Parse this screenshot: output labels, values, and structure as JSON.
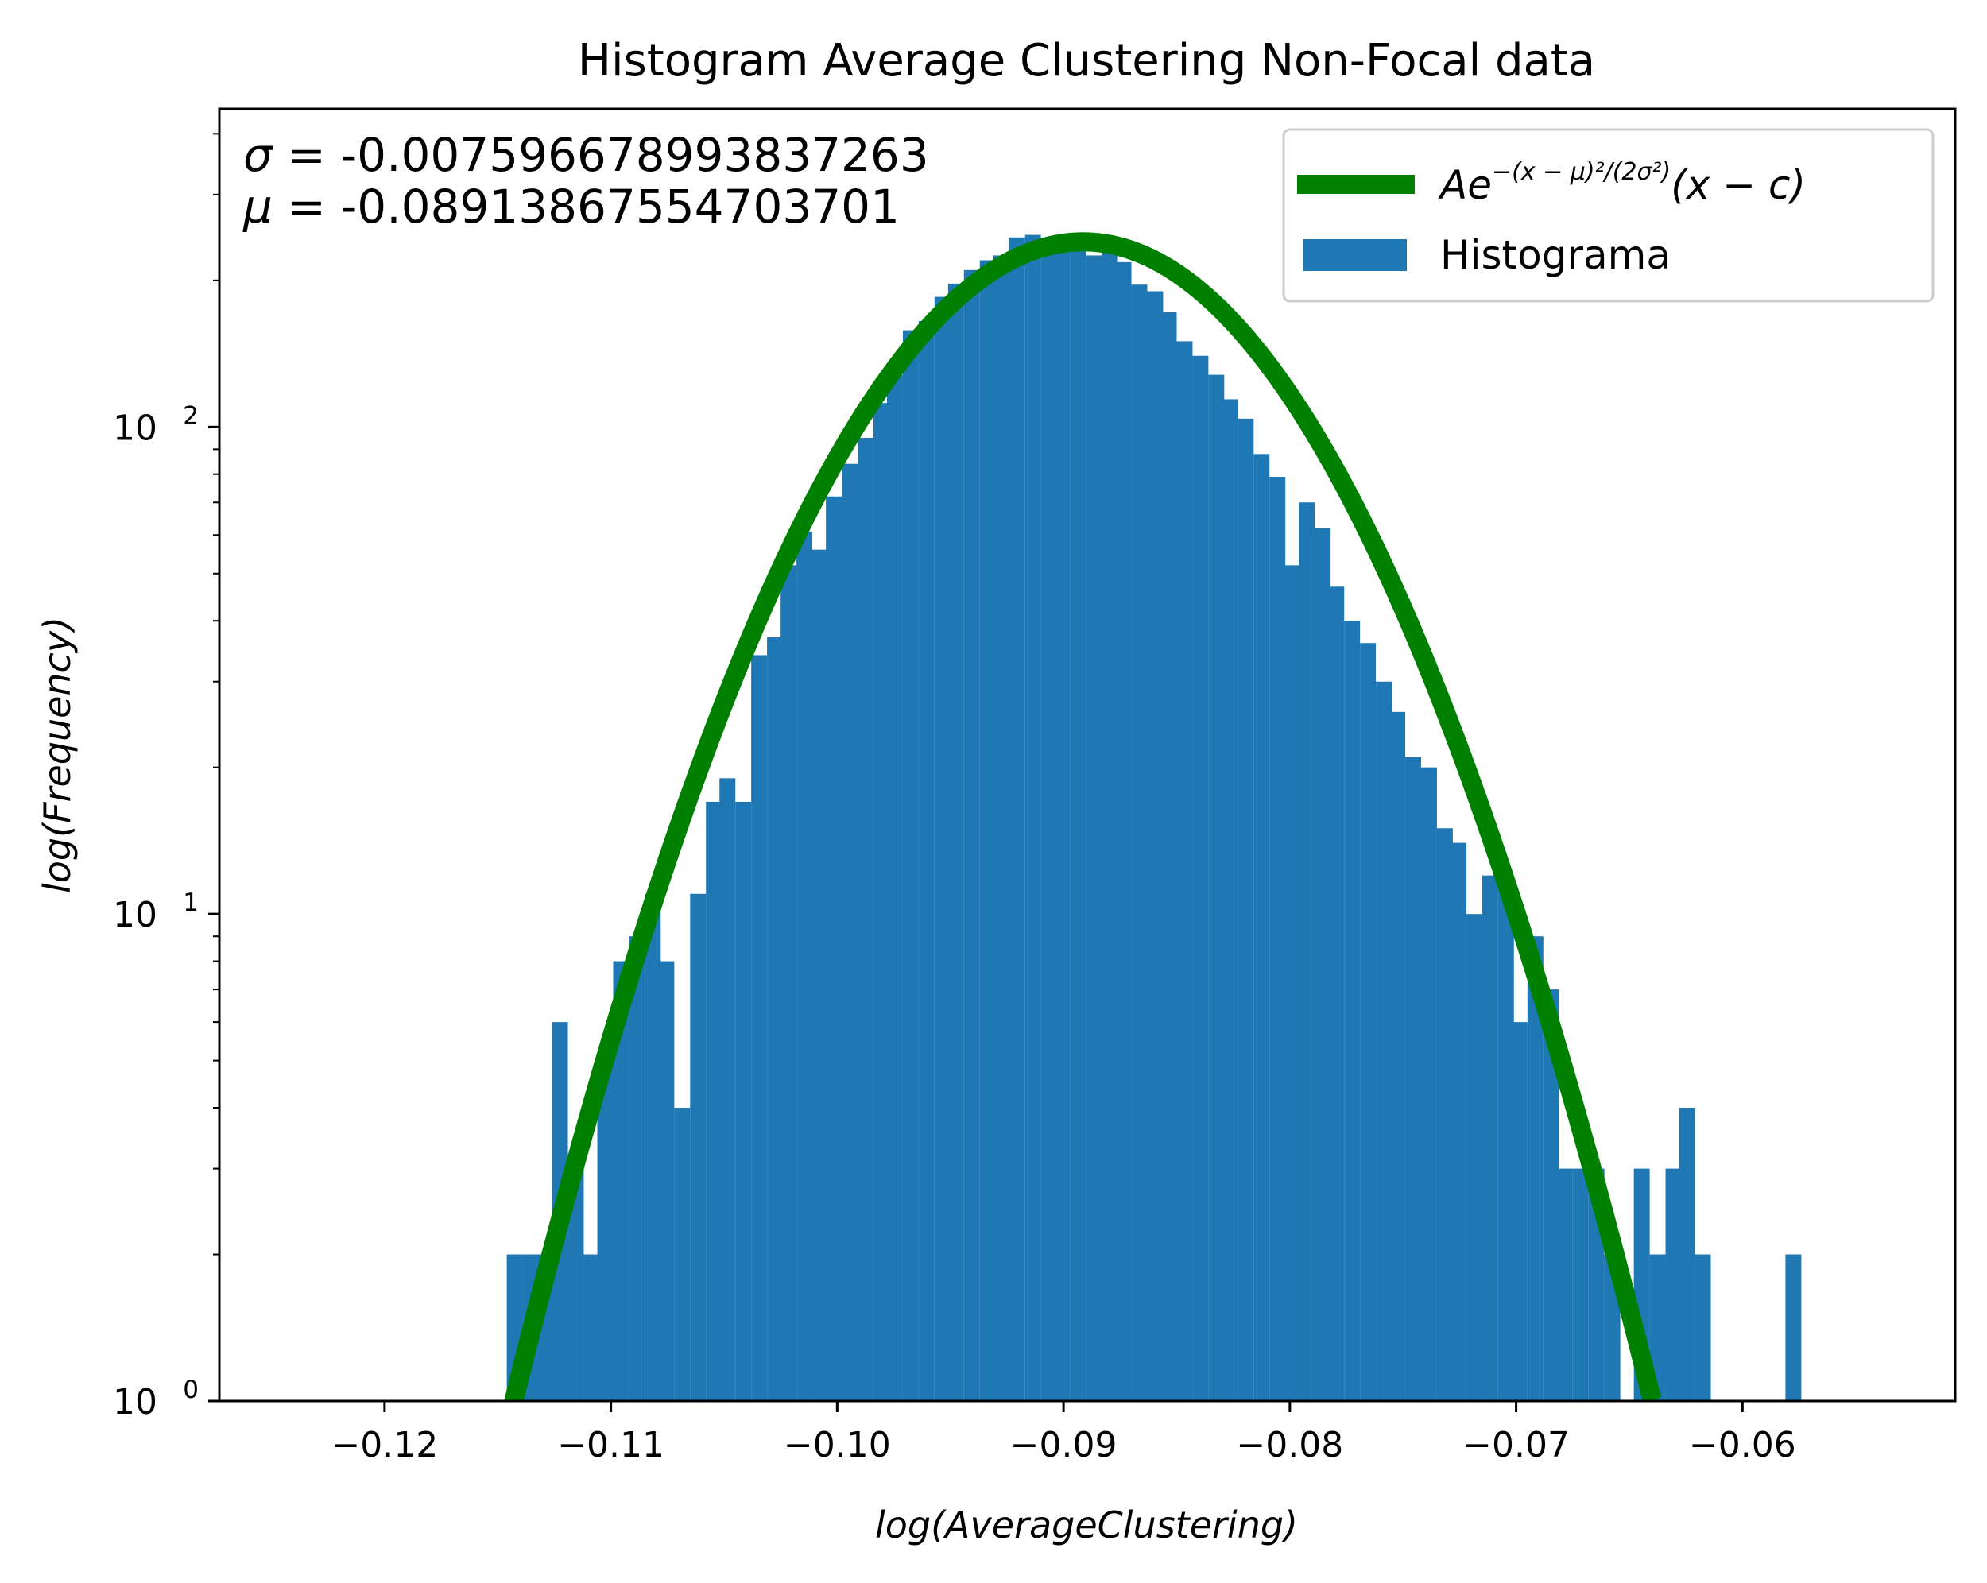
{
  "chart_data": {
    "type": "bar",
    "title": "Histogram Average Clustering Non-Focal data",
    "xlabel": "log(AverageClustering)",
    "ylabel": "log(Frequency)",
    "xlim": [
      -0.1273,
      -0.0506
    ],
    "ylim": [
      1,
      450
    ],
    "yscale": "log",
    "grid": false,
    "legend_position": "top-right",
    "xticks": [
      -0.12,
      -0.11,
      -0.1,
      -0.09,
      -0.08,
      -0.07,
      -0.06
    ],
    "xtick_labels": [
      "−0.12",
      "−0.11",
      "−0.10",
      "−0.09",
      "−0.08",
      "−0.07",
      "−0.06"
    ],
    "yticks": [
      1,
      10,
      100
    ],
    "ytick_labels": [
      {
        "base": "10",
        "exp": "0"
      },
      {
        "base": "10",
        "exp": "1"
      },
      {
        "base": "10",
        "exp": "2"
      }
    ],
    "annotations": [
      {
        "symbol": "σ",
        "text": " = -0.007596678993837263"
      },
      {
        "symbol": "μ",
        "text": " = -0.08913867554703701"
      }
    ],
    "legend": [
      {
        "type": "line",
        "label_main": "Ae",
        "label_exp": "−(x − μ)²/(2σ²)",
        "label_tail": "(x − c)",
        "color": "#008000"
      },
      {
        "type": "patch",
        "label": "Histograma",
        "color": "#1f77b4"
      }
    ],
    "series": [
      {
        "name": "Histograma",
        "kind": "histogram",
        "color": "#1f77b4",
        "bin_width": 0.0006726,
        "bin_starts": [
          -0.1146,
          -0.1139,
          -0.1132,
          -0.1126,
          -0.1119,
          -0.1112,
          -0.1106,
          -0.1099,
          -0.1092,
          -0.1085,
          -0.1079,
          -0.1072,
          -0.1065,
          -0.1058,
          -0.1052,
          -0.1045,
          -0.1038,
          -0.1031,
          -0.1025,
          -0.1018,
          -0.1011,
          -0.1005,
          -0.0998,
          -0.0991,
          -0.0984,
          -0.0978,
          -0.0971,
          -0.0964,
          -0.0957,
          -0.0951,
          -0.0944,
          -0.0937,
          -0.0931,
          -0.0924,
          -0.0917,
          -0.091,
          -0.0904,
          -0.0897,
          -0.089,
          -0.0883,
          -0.0877,
          -0.087,
          -0.0863,
          -0.0857,
          -0.085,
          -0.0843,
          -0.0836,
          -0.083,
          -0.0823,
          -0.0816,
          -0.0809,
          -0.0803,
          -0.0796,
          -0.0789,
          -0.0783,
          -0.0776,
          -0.0769,
          -0.0762,
          -0.0756,
          -0.0749,
          -0.0742,
          -0.0735,
          -0.0729,
          -0.0722,
          -0.0715,
          -0.0708,
          -0.0702,
          -0.0695,
          -0.0688,
          -0.0682,
          -0.0675,
          -0.0668,
          -0.0661,
          -0.0655,
          -0.0648,
          -0.0641,
          -0.0634,
          -0.0628,
          -0.0621,
          -0.0614,
          -0.0608,
          -0.0601,
          -0.0594,
          -0.0587,
          -0.0581,
          -0.0574,
          -0.0567,
          -0.056
        ],
        "values": [
          2,
          2,
          2,
          6,
          3,
          2,
          5,
          8,
          9,
          11,
          8,
          4,
          11,
          17,
          19,
          17,
          34,
          37,
          52,
          61,
          56,
          72,
          84,
          95,
          112,
          128,
          158,
          165,
          185,
          197,
          210,
          220,
          225,
          245,
          248,
          240,
          247,
          244,
          225,
          230,
          218,
          196,
          190,
          172,
          150,
          140,
          128,
          114,
          104,
          88,
          79,
          52,
          70,
          62,
          47,
          40,
          36,
          30,
          26,
          21,
          20,
          15,
          14,
          10,
          12,
          12,
          6,
          9,
          7,
          3,
          3,
          3,
          2,
          1,
          3,
          2,
          3,
          4,
          2,
          1,
          1,
          1,
          1,
          1,
          2,
          1,
          1,
          1
        ]
      },
      {
        "name": "Ae^{-(x-μ)²/(2σ²)}(x-c)",
        "kind": "fit-curve",
        "color": "#008000",
        "mu": -0.08913867554703701,
        "sigma": -0.007596678993837263,
        "peak": 240,
        "x_range": [
          -0.1146,
          -0.064
        ]
      }
    ]
  }
}
